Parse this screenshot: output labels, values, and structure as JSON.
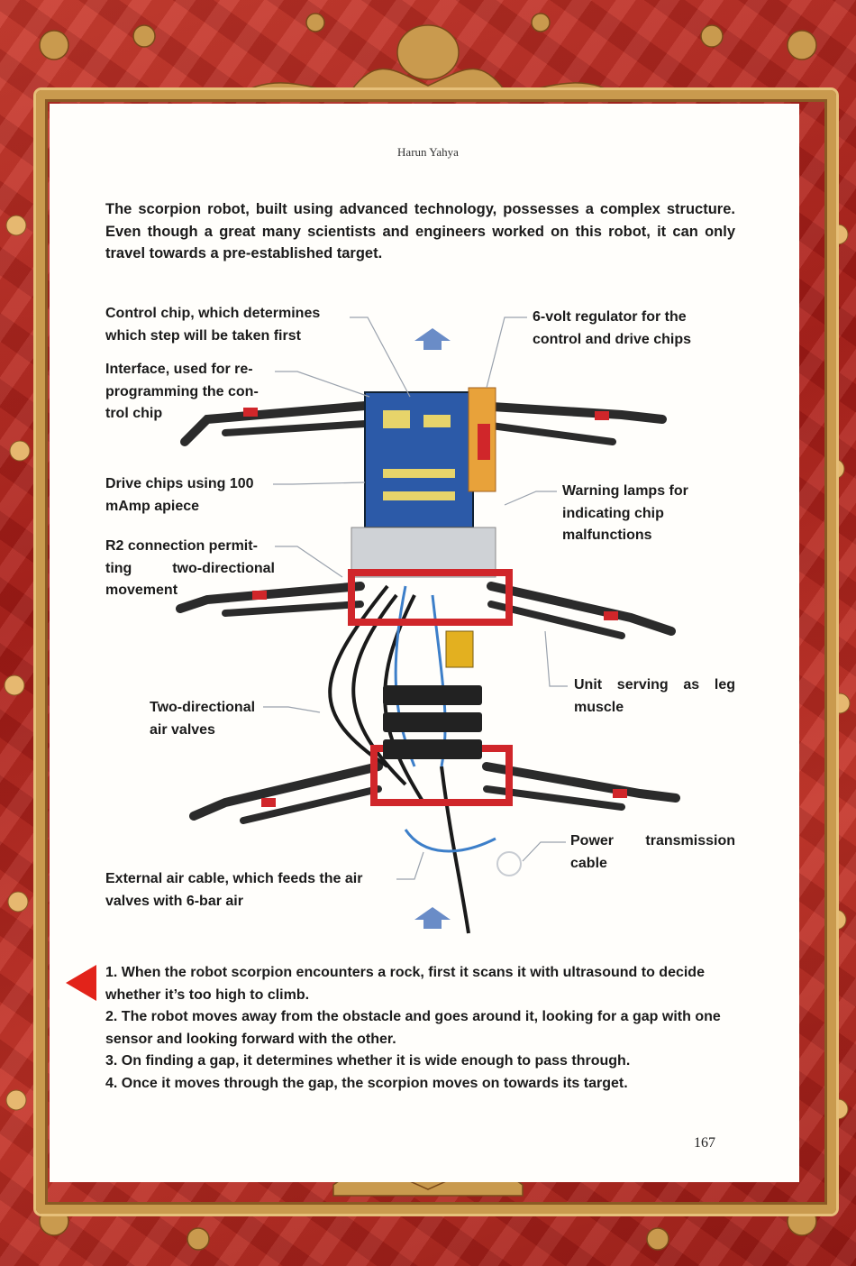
{
  "header": {
    "author": "Harun Yahya"
  },
  "intro": "The scorpion robot, built using advanced technology, possesses a complex structure. Even though a great many scientists and engineers worked on this robot, it can only travel towards a pre-established target.",
  "labels": {
    "control_chip": [
      "Control chip, which determines",
      "which step will be taken first"
    ],
    "interface": [
      "Interface, used for re-",
      "programming the con-",
      "trol chip"
    ],
    "drive_chips": [
      "Drive chips using 100",
      "mAmp apiece"
    ],
    "r2_connection": [
      "R2 connection permit-",
      "ting two-directional",
      "movement"
    ],
    "air_valves": [
      "Two-directional",
      "air valves"
    ],
    "external_cable": [
      "External air cable, which feeds the air",
      "valves with 6-bar air"
    ],
    "regulator": [
      "6-volt regulator for the",
      "control and drive chips"
    ],
    "warning_lamps": [
      "Warning lamps for",
      "indicating chip",
      "malfunctions"
    ],
    "leg_muscle": [
      "Unit serving as leg",
      "muscle"
    ],
    "power_cable": [
      "Power transmission",
      "cable"
    ]
  },
  "steps": [
    "1. When the robot scorpion encounters a rock, first it scans it with ultrasound to decide whether it’s too high to climb.",
    "2. The robot moves away from the obstacle and goes around it, looking for a gap with one sensor and looking forward with the other.",
    "3. On finding a gap, it determines whether it is wide enough to pass through.",
    "4. Once it moves through the gap, the scorpion moves on towards its target."
  ],
  "page_number": "167",
  "colors": {
    "accent_red": "#e2231a",
    "frame_red": "#b4231f",
    "gold": "#c99a4e",
    "arrow_blue": "#6a8cc7"
  }
}
